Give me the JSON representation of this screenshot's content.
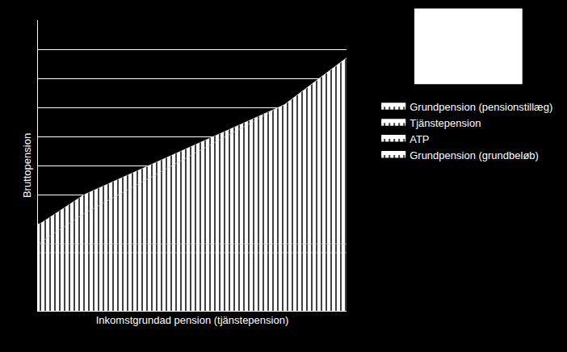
{
  "chart_data": {
    "type": "area",
    "stacked": true,
    "x_label": "Inkomstgrundad pension (tjänstepension)",
    "y_label": "Bruttopension",
    "x": [
      0,
      1.5,
      8,
      10
    ],
    "series": [
      {
        "name": "Grundpension (grundbeløb)",
        "color": "#ffffff",
        "values": [
          2.0,
          2.0,
          2.0,
          2.0
        ]
      },
      {
        "name": "ATP",
        "color": "#ffffff",
        "values": [
          0.3,
          0.3,
          0.3,
          0.3
        ]
      },
      {
        "name": "Tjänstepension",
        "color": "#ffffff",
        "values": [
          0,
          1.05,
          4.8,
          6.4
        ]
      },
      {
        "name": "Grundpension (pensionstillæg)",
        "color": "#ffffff",
        "values": [
          0.65,
          0.65,
          0,
          0
        ]
      }
    ],
    "xlim": [
      0,
      10
    ],
    "xticks": [
      0,
      10
    ],
    "ylim": [
      0,
      10
    ],
    "yticks": [
      0,
      1,
      2,
      3,
      4,
      5,
      6,
      7,
      8,
      9,
      10
    ],
    "grid": true,
    "tick_labels": false,
    "legend": "right"
  }
}
